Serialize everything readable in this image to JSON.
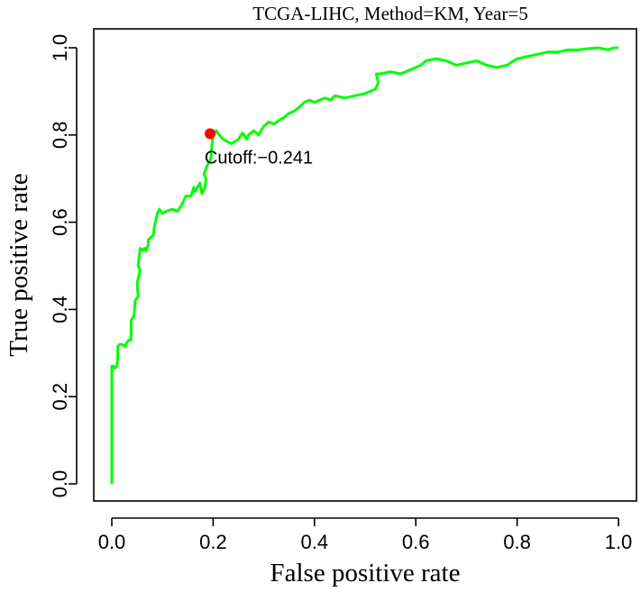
{
  "chart_data": {
    "type": "line",
    "title": "TCGA-LIHC, Method=KM, Year=5",
    "xlabel": "False positive rate",
    "ylabel": "True positive rate",
    "xlim": [
      0,
      1
    ],
    "ylim": [
      0,
      1
    ],
    "x_ticks": [
      "0.0",
      "0.2",
      "0.4",
      "0.6",
      "0.8",
      "1.0"
    ],
    "y_ticks": [
      "0.0",
      "0.2",
      "0.4",
      "0.6",
      "0.8",
      "1.0"
    ],
    "grid": false,
    "line_color": "#00ff00",
    "point_color": "#ff0000",
    "cutoff_point": {
      "x": 0.194,
      "y": 0.803,
      "label": "Cutoff:−0.241"
    },
    "series": [
      {
        "x": [
          0.0,
          0.0,
          0.004,
          0.006,
          0.01,
          0.012,
          0.012,
          0.016,
          0.02,
          0.026,
          0.03,
          0.034,
          0.038,
          0.038,
          0.044,
          0.046,
          0.052,
          0.05,
          0.056,
          0.052,
          0.056,
          0.062,
          0.064,
          0.068,
          0.072,
          0.072,
          0.082,
          0.084,
          0.09,
          0.094,
          0.1,
          0.108,
          0.12,
          0.13,
          0.138,
          0.146,
          0.156,
          0.162,
          0.164,
          0.174,
          0.178,
          0.184,
          0.186,
          0.182,
          0.188,
          0.194,
          0.196,
          0.196,
          0.2,
          0.206,
          0.212,
          0.22,
          0.236,
          0.25,
          0.258,
          0.266,
          0.27,
          0.28,
          0.29,
          0.3,
          0.31,
          0.32,
          0.332,
          0.34,
          0.35,
          0.36,
          0.366,
          0.376,
          0.38,
          0.39,
          0.4,
          0.41,
          0.42,
          0.432,
          0.44,
          0.46,
          0.48,
          0.5,
          0.51,
          0.52,
          0.526,
          0.522,
          0.53,
          0.55,
          0.57,
          0.59,
          0.61,
          0.62,
          0.64,
          0.66,
          0.68,
          0.7,
          0.72,
          0.74,
          0.76,
          0.78,
          0.8,
          0.82,
          0.84,
          0.86,
          0.88,
          0.9,
          0.92,
          0.94,
          0.96,
          0.98,
          0.99,
          1.0
        ],
        "values": [
          0.0,
          0.27,
          0.27,
          0.265,
          0.27,
          0.29,
          0.315,
          0.32,
          0.32,
          0.315,
          0.325,
          0.33,
          0.33,
          0.375,
          0.385,
          0.42,
          0.43,
          0.46,
          0.49,
          0.5,
          0.54,
          0.535,
          0.54,
          0.535,
          0.55,
          0.56,
          0.57,
          0.59,
          0.62,
          0.63,
          0.62,
          0.625,
          0.63,
          0.625,
          0.64,
          0.66,
          0.66,
          0.68,
          0.67,
          0.69,
          0.665,
          0.68,
          0.7,
          0.71,
          0.73,
          0.74,
          0.75,
          0.76,
          0.8,
          0.81,
          0.8,
          0.79,
          0.78,
          0.79,
          0.805,
          0.79,
          0.8,
          0.81,
          0.8,
          0.82,
          0.83,
          0.825,
          0.835,
          0.84,
          0.85,
          0.855,
          0.86,
          0.87,
          0.875,
          0.88,
          0.875,
          0.88,
          0.885,
          0.88,
          0.89,
          0.885,
          0.89,
          0.895,
          0.9,
          0.905,
          0.92,
          0.94,
          0.94,
          0.945,
          0.94,
          0.95,
          0.96,
          0.97,
          0.975,
          0.97,
          0.96,
          0.965,
          0.97,
          0.96,
          0.955,
          0.96,
          0.975,
          0.98,
          0.985,
          0.99,
          0.99,
          0.995,
          0.995,
          0.998,
          1.0,
          0.995,
          1.0,
          1.0
        ]
      }
    ]
  }
}
